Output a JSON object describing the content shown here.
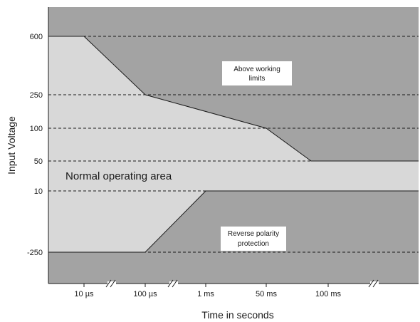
{
  "chart_data": {
    "type": "area",
    "title": "",
    "xlabel": "Time in seconds",
    "ylabel": "Input Voltage",
    "x_ticks": [
      "10 µs",
      "100 µs",
      "1 ms",
      "50 ms",
      "100 ms"
    ],
    "y_ticks": [
      "600",
      "250",
      "100",
      "50",
      "10",
      "-250"
    ],
    "grid": "dashed horizontal lines at y ticks",
    "upper_limit": [
      {
        "x": "start",
        "y": 600
      },
      {
        "x": "10 µs",
        "y": 600
      },
      {
        "x": "100 µs",
        "y": 250
      },
      {
        "x": "50 ms",
        "y": 100
      },
      {
        "x": "between 50 ms and 100 ms",
        "y": 50
      },
      {
        "x": "end",
        "y": 50
      }
    ],
    "lower_limit": [
      {
        "x": "start",
        "y": -250
      },
      {
        "x": "100 µs",
        "y": -250
      },
      {
        "x": "1 ms",
        "y": 10
      },
      {
        "x": "end",
        "y": 10
      }
    ],
    "regions": [
      {
        "label": "Above working limits",
        "lines": [
          "Above working",
          "limits"
        ]
      },
      {
        "label": "Normal operating area",
        "lines": [
          "Normal operating area"
        ]
      },
      {
        "label": "Reverse polarity protection",
        "lines": [
          "Reverse polarity",
          "protection"
        ]
      }
    ],
    "colors": {
      "outside": "#a3a3a3",
      "normal": "#d8d8d8",
      "label_box": "#ffffff",
      "line": "#1a1a1a"
    }
  }
}
